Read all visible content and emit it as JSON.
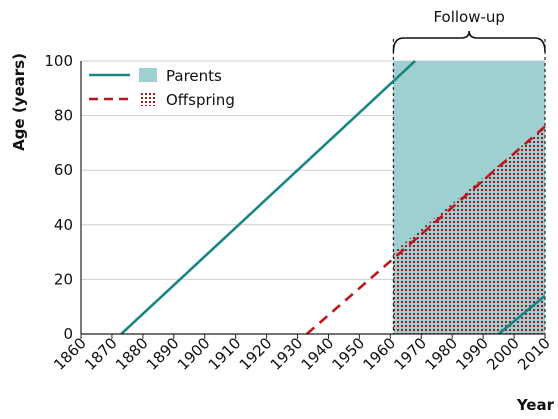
{
  "chart_data": {
    "type": "line",
    "title": "",
    "xlabel": "Year",
    "ylabel": "Age (years)",
    "xlim": [
      1860,
      2010
    ],
    "ylim": [
      0,
      100
    ],
    "x_ticks": [
      1860,
      1870,
      1880,
      1890,
      1900,
      1910,
      1920,
      1930,
      1940,
      1950,
      1960,
      1970,
      1980,
      1990,
      2000,
      2010
    ],
    "y_ticks": [
      0,
      20,
      40,
      60,
      80,
      100
    ],
    "grid": "horizontal",
    "legend_position": "top-left",
    "series": [
      {
        "name": "Parents",
        "style": "solid",
        "color": "#1a8585",
        "lines": [
          {
            "x": [
              1873,
              1968
            ],
            "y": [
              0,
              100
            ]
          },
          {
            "x": [
              1995,
              2010
            ],
            "y": [
              0,
              14
            ]
          }
        ],
        "shaded_region": {
          "x": [
            1961,
            2010
          ],
          "y": [
            0,
            100
          ],
          "fill": "#9fd0d1"
        }
      },
      {
        "name": "Offspring",
        "style": "dashed",
        "color": "#c0141e",
        "lines": [
          {
            "x": [
              1933,
              2010
            ],
            "y": [
              0,
              76
            ]
          }
        ],
        "shaded_region": {
          "x": [
            1961,
            2010
          ],
          "y_lower": [
            0,
            0
          ],
          "y_upper": [
            30,
            76
          ],
          "pattern": "dotted"
        }
      }
    ],
    "annotations": [
      {
        "text": "Follow-up",
        "x_range": [
          1961,
          2010
        ],
        "type": "bracket"
      }
    ]
  }
}
